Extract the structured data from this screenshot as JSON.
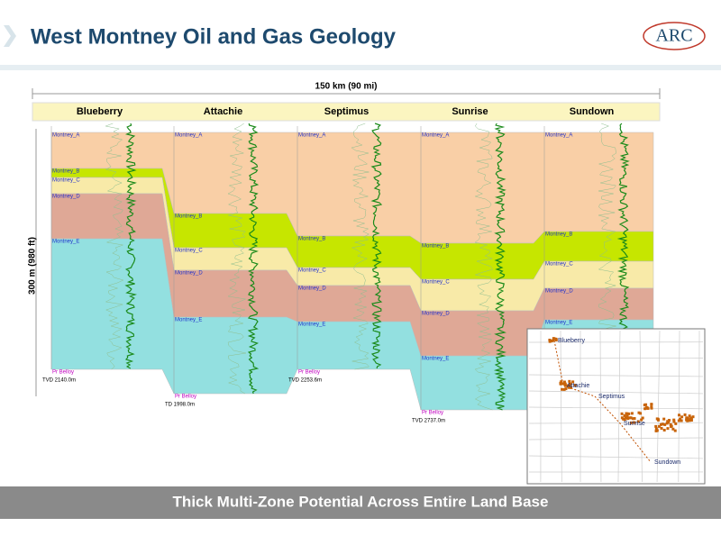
{
  "header": {
    "title": "West Montney Oil and Gas Geology",
    "logo": "ARC"
  },
  "scale": {
    "horizontal": "150 km (90 mi)",
    "vertical": "300 m (980 ft)"
  },
  "wells": [
    {
      "name": "Blueberry",
      "zones": [
        "Montney_A",
        "Montney_B",
        "Montney_C",
        "Montney_D",
        "Montney_E",
        "Pr Belloy"
      ],
      "tvd": "TVD 2140.0m"
    },
    {
      "name": "Attachie",
      "zones": [
        "Montney_A",
        "Montney_B",
        "Montney_C",
        "Montney_D",
        "Montney_E",
        "Pr Belloy"
      ],
      "tvd": "TD 1998.0m"
    },
    {
      "name": "Septimus",
      "zones": [
        "Montney_A",
        "Montney_B",
        "Montney_C",
        "Montney_D",
        "Montney_E",
        "Pr Belloy"
      ],
      "tvd": "TVD 2253.6m"
    },
    {
      "name": "Sunrise",
      "zones": [
        "Montney_A",
        "Montney_B",
        "Montney_C",
        "Montney_D",
        "Montney_E",
        "Pr Belloy"
      ],
      "tvd": "TVD 2737.0m"
    },
    {
      "name": "Sundown",
      "zones": [
        "Montney_A",
        "Montney_B",
        "Montney_C",
        "Montney_D",
        "Montney_E"
      ]
    }
  ],
  "map": {
    "labels": [
      "Blueberry",
      "Attachie",
      "Septimus",
      "Sunrise",
      "Sundown"
    ]
  },
  "footer": "Thick Multi-Zone Potential Across Entire Land Base"
}
